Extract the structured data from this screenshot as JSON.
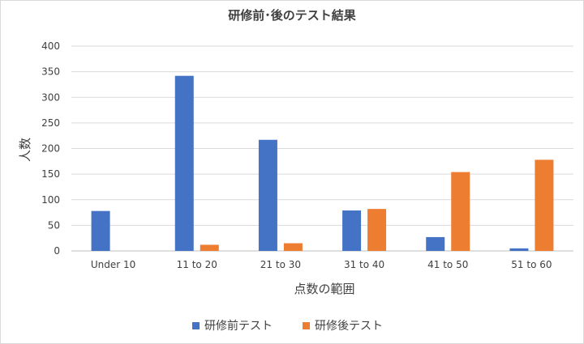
{
  "chart_data": {
    "type": "bar",
    "title": "研修前･後のテスト結果",
    "xlabel": "点数の範囲",
    "ylabel": "人数",
    "categories": [
      "Under 10",
      "11 to 20",
      "21 to 30",
      "31 to 40",
      "41 to 50",
      "51 to 60"
    ],
    "series": [
      {
        "name": "研修前テスト",
        "color": "#4472c4",
        "values": [
          78,
          342,
          217,
          79,
          27,
          5
        ]
      },
      {
        "name": "研修後テスト",
        "color": "#ed7d31",
        "values": [
          0,
          12,
          15,
          82,
          154,
          178
        ]
      }
    ],
    "ylim": [
      0,
      400
    ],
    "yticks": [
      "0",
      "50",
      "100",
      "150",
      "200",
      "250",
      "300",
      "350",
      "400"
    ],
    "grid": true,
    "legend_position": "bottom"
  }
}
